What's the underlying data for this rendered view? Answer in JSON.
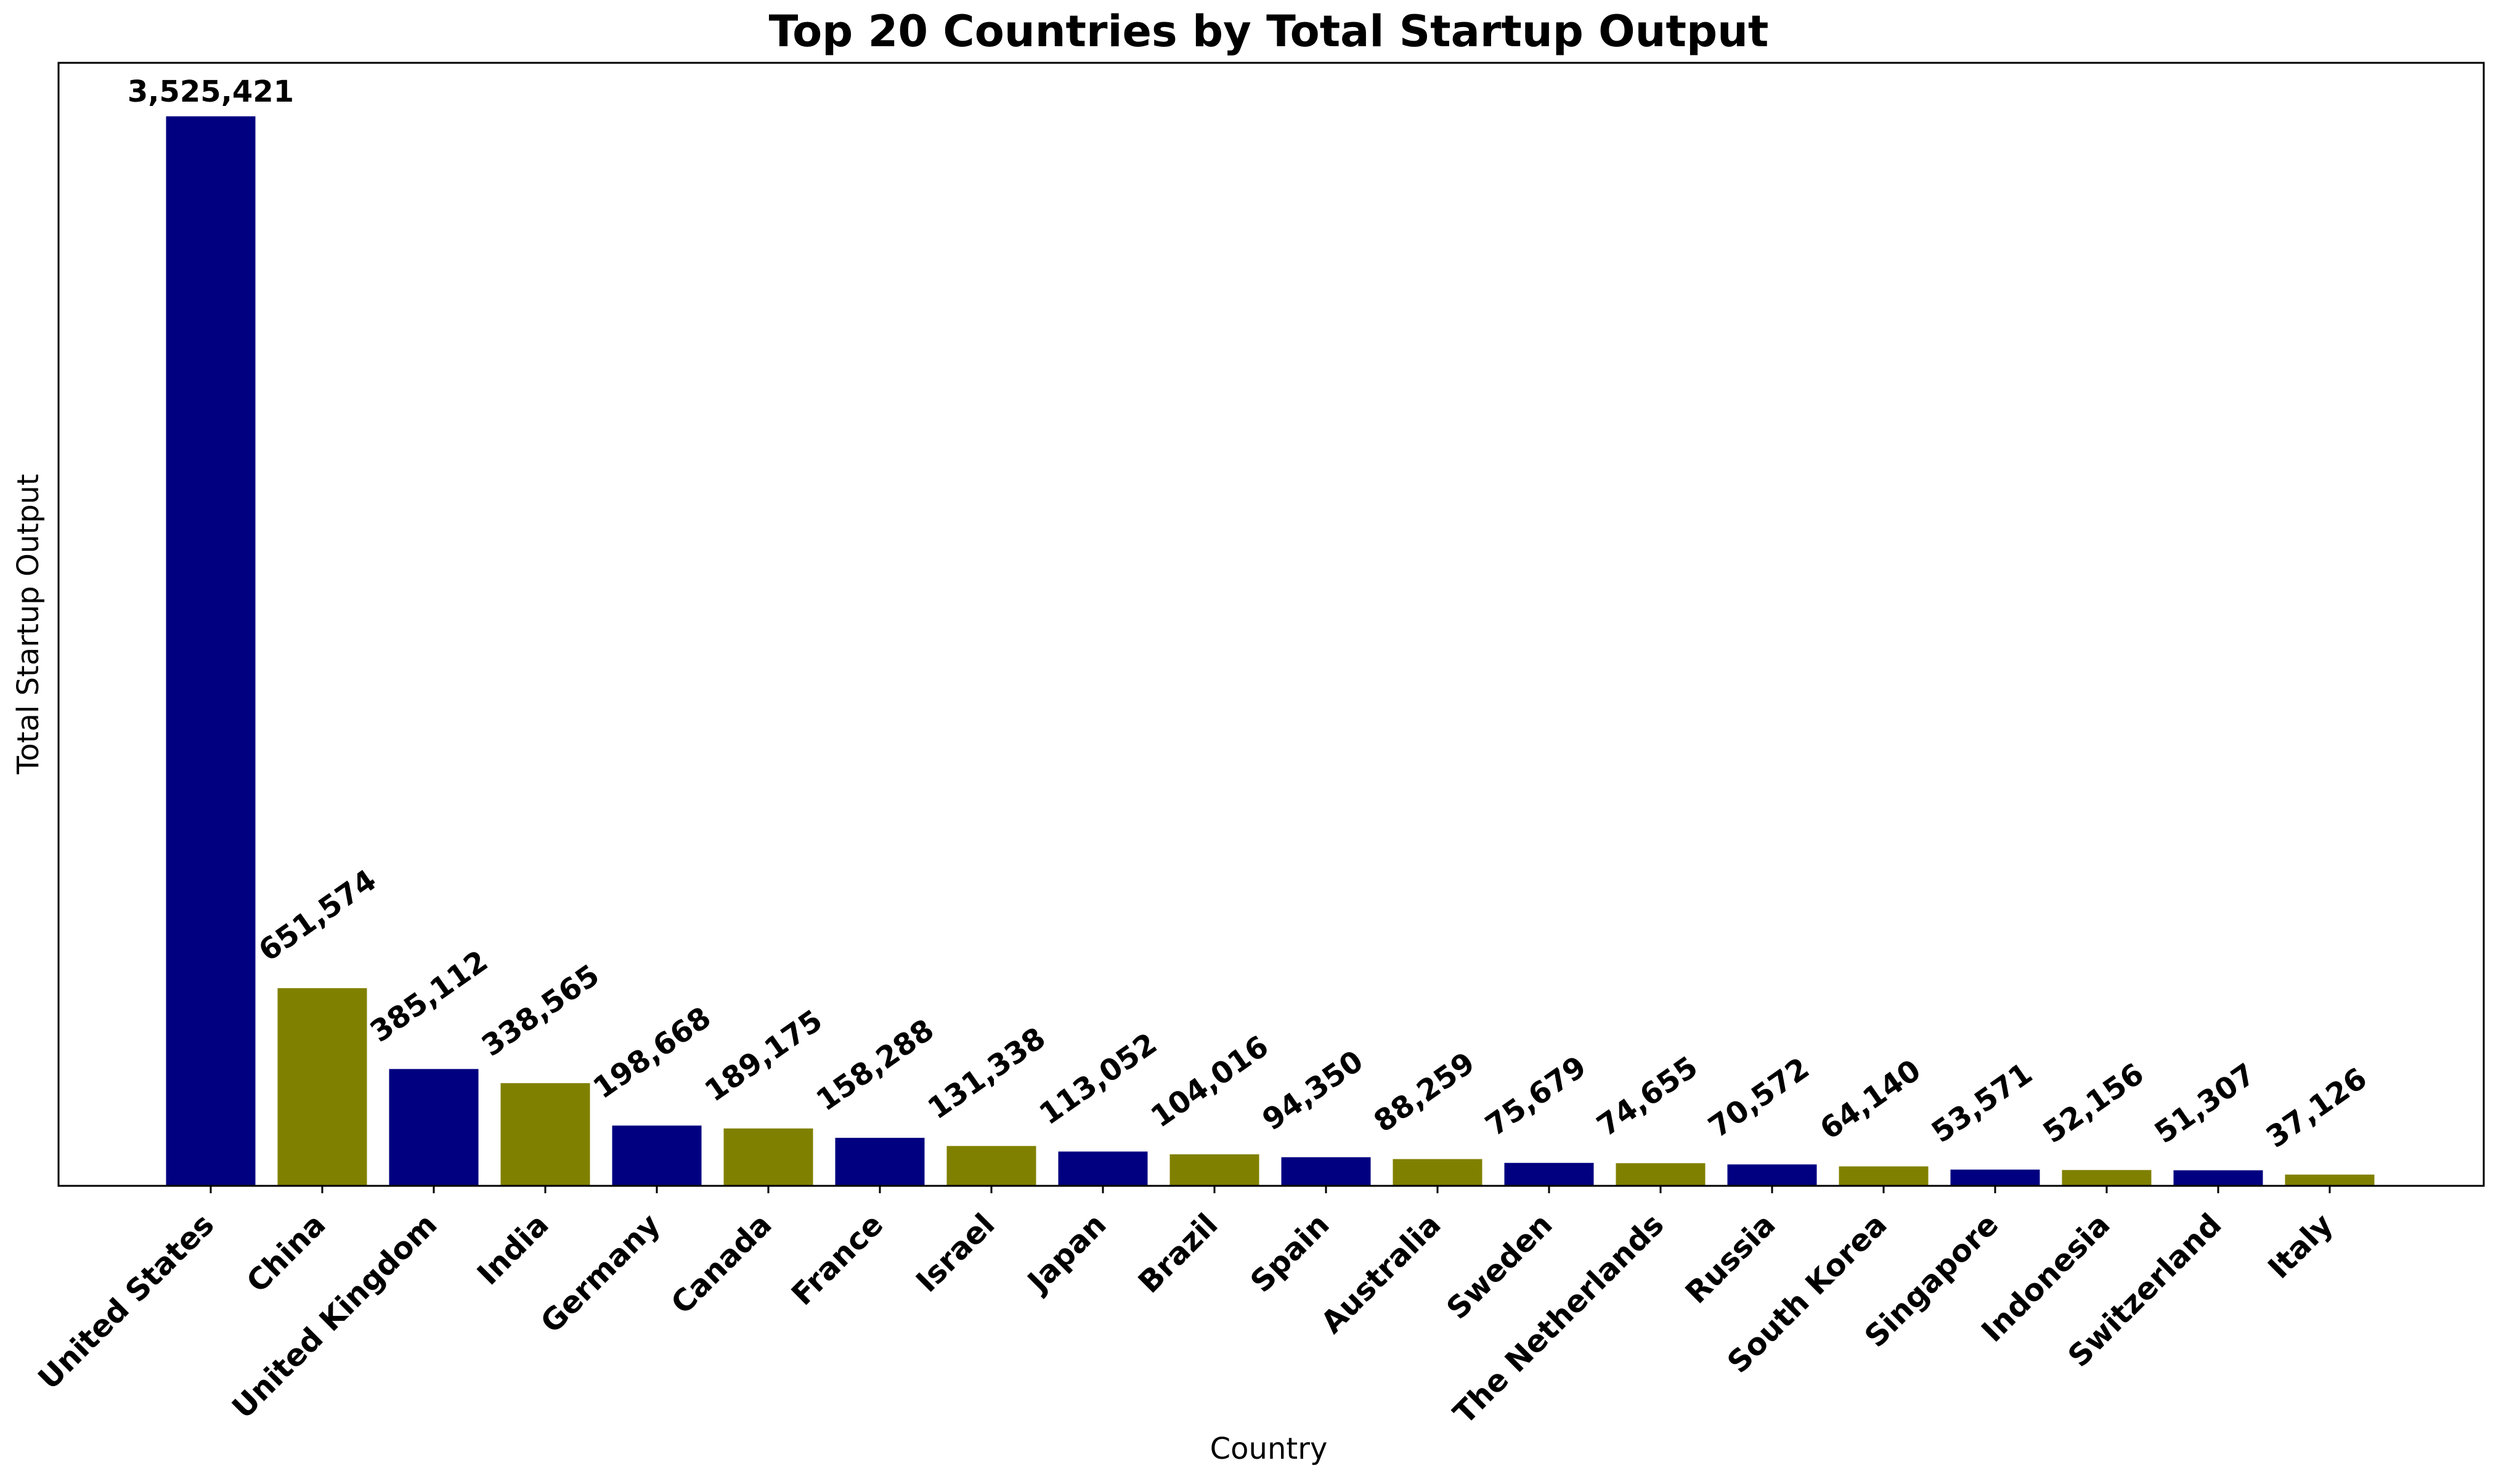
{
  "chart_data": {
    "type": "bar",
    "title": "Top 20 Countries by Total Startup Output",
    "xlabel": "Country",
    "ylabel": "Total Startup Output",
    "categories": [
      "United States",
      "China",
      "United Kingdom",
      "India",
      "Germany",
      "Canada",
      "France",
      "Israel",
      "Japan",
      "Brazil",
      "Spain",
      "Australia",
      "Sweden",
      "The Netherlands",
      "Russia",
      "South Korea",
      "Singapore",
      "Indonesia",
      "Switzerland",
      "Italy"
    ],
    "values": [
      3525421,
      651574,
      385112,
      338565,
      198668,
      189175,
      158288,
      131338,
      113052,
      104016,
      94350,
      88259,
      75679,
      74655,
      70572,
      64140,
      53571,
      52156,
      51307,
      37126
    ],
    "value_labels": [
      "3,525,421",
      "651,574",
      "385,112",
      "338,565",
      "198,668",
      "189,175",
      "158,288",
      "131,338",
      "113,052",
      "104,016",
      "94,350",
      "88,259",
      "75,679",
      "74,655",
      "70,572",
      "64,140",
      "53,571",
      "52,156",
      "51,307",
      "37,126"
    ],
    "colors": [
      "#000080",
      "#808000"
    ],
    "ylim": [
      0,
      3701692
    ],
    "grid": false,
    "legend": "none"
  }
}
